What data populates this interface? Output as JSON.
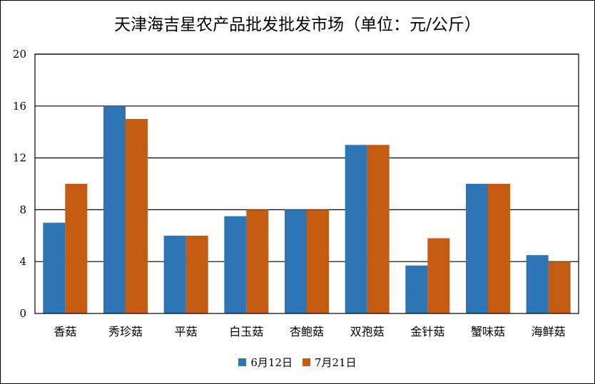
{
  "chart_data": {
    "type": "bar",
    "title": "天津海吉星农产品批发批发市场（单位：元/公斤）",
    "categories": [
      "香菇",
      "秀珍菇",
      "平菇",
      "白玉菇",
      "杏鲍菇",
      "双孢菇",
      "金针菇",
      "蟹味菇",
      "海鲜菇"
    ],
    "series": [
      {
        "name": "6月12日",
        "color": "#2E75B6",
        "values": [
          7,
          16,
          6,
          7.5,
          8,
          13,
          3.7,
          10,
          4.5
        ]
      },
      {
        "name": "7月21日",
        "color": "#C55A11",
        "values": [
          10,
          15,
          6,
          8,
          8,
          13,
          5.8,
          10,
          4
        ]
      }
    ],
    "ylim": [
      0,
      20
    ],
    "yticks": [
      0,
      4,
      8,
      12,
      16,
      20
    ],
    "grid": true,
    "legend_position": "bottom"
  }
}
